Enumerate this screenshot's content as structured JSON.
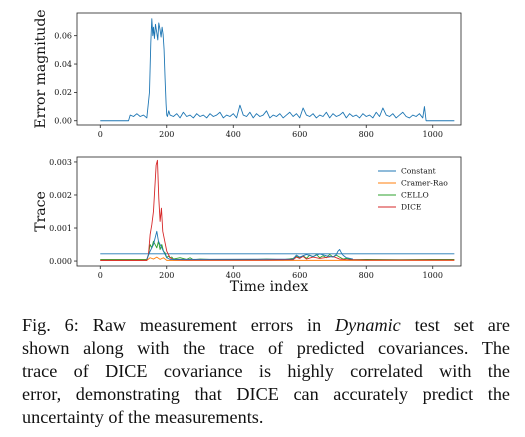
{
  "chart_data": [
    {
      "type": "line",
      "ylabel": "Error magnitude",
      "xlabel": "",
      "xlim": [
        -70,
        1085
      ],
      "ylim": [
        -0.003,
        0.076
      ],
      "xticks": [
        0,
        200,
        400,
        600,
        800,
        1000
      ],
      "yticks": [
        0.0,
        0.02,
        0.04,
        0.06
      ],
      "ytick_labels": [
        "0.00",
        "0.02",
        "0.04",
        "0.06"
      ],
      "series": [
        {
          "color": "#1f77b4",
          "x": [
            0,
            85,
            90,
            100,
            110,
            120,
            130,
            140,
            148,
            152,
            155,
            158,
            160,
            163,
            166,
            170,
            173,
            176,
            180,
            183,
            186,
            189,
            192,
            195,
            198,
            200,
            202,
            206,
            210,
            220,
            230,
            240,
            250,
            260,
            270,
            280,
            290,
            300,
            310,
            320,
            330,
            340,
            350,
            360,
            370,
            380,
            390,
            400,
            410,
            420,
            430,
            440,
            450,
            460,
            470,
            480,
            490,
            500,
            510,
            520,
            530,
            540,
            550,
            560,
            570,
            580,
            590,
            600,
            610,
            620,
            630,
            640,
            650,
            660,
            670,
            680,
            690,
            700,
            710,
            720,
            730,
            740,
            750,
            760,
            770,
            780,
            790,
            800,
            810,
            820,
            830,
            840,
            850,
            860,
            870,
            880,
            890,
            900,
            910,
            920,
            930,
            940,
            950,
            960,
            970,
            975,
            980,
            1000,
            1040,
            1065
          ],
          "y": [
            0.0,
            0.0,
            0.004,
            0.003,
            0.005,
            0.003,
            0.004,
            0.002,
            0.02,
            0.055,
            0.072,
            0.06,
            0.066,
            0.058,
            0.068,
            0.062,
            0.057,
            0.069,
            0.064,
            0.059,
            0.066,
            0.061,
            0.05,
            0.03,
            0.012,
            0.004,
            0.003,
            0.007,
            0.004,
            0.003,
            0.005,
            0.002,
            0.006,
            0.003,
            0.004,
            0.002,
            0.005,
            0.003,
            0.004,
            0.002,
            0.005,
            0.003,
            0.004,
            0.006,
            0.002,
            0.004,
            0.003,
            0.005,
            0.002,
            0.011,
            0.004,
            0.003,
            0.006,
            0.002,
            0.005,
            0.003,
            0.004,
            0.007,
            0.002,
            0.004,
            0.003,
            0.005,
            0.002,
            0.004,
            0.006,
            0.003,
            0.005,
            0.002,
            0.009,
            0.004,
            0.003,
            0.005,
            0.002,
            0.004,
            0.003,
            0.006,
            0.002,
            0.005,
            0.003,
            0.004,
            0.006,
            0.002,
            0.005,
            0.003,
            0.004,
            0.002,
            0.005,
            0.003,
            0.004,
            0.002,
            0.006,
            0.003,
            0.009,
            0.004,
            0.003,
            0.005,
            0.002,
            0.004,
            0.006,
            0.003,
            0.002,
            0.004,
            0.003,
            0.005,
            0.002,
            0.01,
            0.0,
            0.0,
            0.0,
            0.0
          ]
        }
      ]
    },
    {
      "type": "line",
      "ylabel": "Trace",
      "xlabel": "Time index",
      "xlim": [
        -70,
        1085
      ],
      "ylim": [
        -0.00015,
        0.00315
      ],
      "xticks": [
        0,
        200,
        400,
        600,
        800,
        1000
      ],
      "yticks": [
        0.0,
        0.001,
        0.002,
        0.003
      ],
      "ytick_labels": [
        "0.000",
        "0.001",
        "0.002",
        "0.003"
      ],
      "legend": "top-right",
      "series": [
        {
          "name": "Constant",
          "color": "#1f77b4",
          "x": [
            0,
            1065
          ],
          "y": [
            0.00022,
            0.00022
          ]
        },
        {
          "name": "Cramer-Rao",
          "color": "#ff7f0e",
          "x": [
            0,
            140,
            150,
            160,
            170,
            180,
            190,
            200,
            1065
          ],
          "y": [
            2e-05,
            2e-05,
            0.0001,
            6e-05,
            0.00012,
            5e-05,
            0.0001,
            2e-05,
            2e-05
          ]
        },
        {
          "name": "CELLO",
          "color": "#2ca02c",
          "x": [
            0,
            140,
            145,
            150,
            155,
            160,
            165,
            170,
            175,
            180,
            185,
            190,
            195,
            200,
            205,
            210,
            215,
            220,
            240,
            260,
            270,
            280,
            300,
            350,
            400,
            450,
            500,
            550,
            580,
            590,
            600,
            610,
            620,
            630,
            640,
            650,
            660,
            670,
            680,
            690,
            700,
            710,
            720,
            730,
            740,
            760,
            800,
            900,
            1000,
            1065
          ],
          "y": [
            5e-05,
            5e-05,
            0.0002,
            0.0005,
            0.0004,
            0.0006,
            0.0005,
            0.0004,
            0.0006,
            0.00035,
            0.0005,
            0.0003,
            0.00025,
            0.0001,
            0.00015,
            0.0001,
            0.00012,
            6e-05,
            0.0001,
            5e-05,
            0.0001,
            4e-05,
            6e-05,
            4e-05,
            5e-05,
            4e-05,
            6e-05,
            4e-05,
            8e-05,
            0.00014,
            0.0001,
            0.00016,
            8e-05,
            0.00018,
            0.00012,
            0.0002,
            0.0001,
            0.00016,
            0.0001,
            0.0002,
            0.00012,
            0.00018,
            0.00012,
            6e-05,
            8e-05,
            4e-05,
            5e-05,
            4e-05,
            5e-05,
            5e-05
          ]
        },
        {
          "name": "DICE",
          "color": "#d62728",
          "x": [
            0,
            140,
            145,
            150,
            155,
            160,
            164,
            168,
            172,
            176,
            180,
            184,
            188,
            192,
            196,
            200,
            205,
            210,
            220,
            260,
            300,
            400,
            500,
            580,
            590,
            600,
            610,
            620,
            640,
            660,
            700,
            720,
            740,
            800,
            900,
            1000,
            1065
          ],
          "y": [
            2e-05,
            2e-05,
            0.0002,
            0.0008,
            0.0011,
            0.0015,
            0.0022,
            0.0029,
            0.00305,
            0.0019,
            0.0012,
            0.0016,
            0.0009,
            0.0007,
            0.0005,
            0.0003,
            0.0002,
            0.0001,
            4e-05,
            3e-05,
            3e-05,
            3e-05,
            3e-05,
            4e-05,
            0.00012,
            8e-05,
            0.00014,
            6e-05,
            0.00012,
            8e-05,
            0.00014,
            6e-05,
            4e-05,
            3e-05,
            3e-05,
            3e-05,
            3e-05
          ]
        },
        {
          "color": "#1f77b4",
          "x": [
            140,
            150,
            160,
            170,
            175,
            180,
            190,
            200,
            210,
            580,
            590,
            600,
            620,
            640,
            660,
            680,
            700,
            710,
            715,
            720,
            725,
            730,
            740,
            760
          ],
          "y": [
            5e-05,
            0.0003,
            0.0005,
            0.0009,
            0.0006,
            0.0005,
            0.0003,
            0.0001,
            5e-05,
            6e-05,
            0.00018,
            0.00012,
            0.0002,
            0.00014,
            0.00022,
            0.00016,
            0.00012,
            0.0002,
            0.0003,
            0.00035,
            0.00025,
            0.00018,
            0.0001,
            6e-05
          ]
        }
      ]
    }
  ],
  "caption": {
    "lines": [
      [
        "Fig. 6: Raw measurement errors in ",
        "Dynamic",
        " test set are"
      ],
      [
        "shown along with the trace of predicted covariances. The"
      ],
      [
        "trace of DICE covariance is highly correlated with the"
      ],
      [
        "error, demonstrating that DICE can accurately predict the"
      ],
      [
        "uncertainty of the measurements."
      ]
    ]
  }
}
